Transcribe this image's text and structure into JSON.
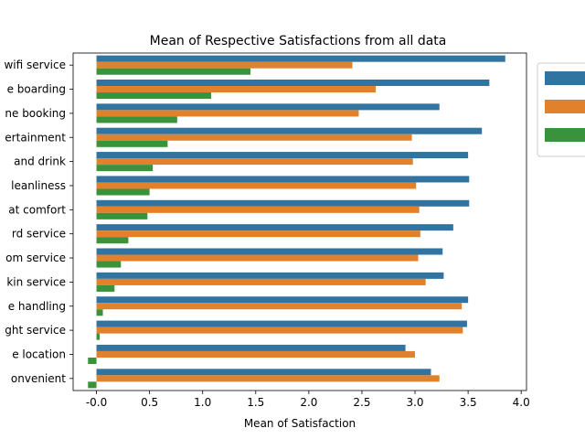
{
  "chart_data": {
    "type": "bar",
    "orientation": "horizontal",
    "title": "Mean of Respective Satisfactions from all data",
    "xlabel": "Mean of Satisfaction",
    "ylabel": "",
    "xlim": [
      -0.22,
      4.05
    ],
    "xticks": [
      -0.0,
      0.5,
      1.0,
      1.5,
      2.0,
      2.5,
      3.0,
      3.5,
      4.0
    ],
    "xtick_labels": [
      "-0.0",
      "0.5",
      "1.0",
      "1.5",
      "2.0",
      "2.5",
      "3.0",
      "3.5",
      "4.0"
    ],
    "categories": [
      "wifi service",
      "e boarding",
      "ne booking",
      "ertainment",
      " and drink",
      "leanliness",
      "at comfort",
      "rd service",
      "om service",
      "kin service",
      "e handling",
      "ght service",
      "e location",
      "onvenient"
    ],
    "series": [
      {
        "name": "",
        "color": "#3274a1",
        "values": [
          3.85,
          3.7,
          3.23,
          3.63,
          3.5,
          3.51,
          3.51,
          3.36,
          3.26,
          3.27,
          3.5,
          3.49,
          2.91,
          3.15
        ]
      },
      {
        "name": "",
        "color": "#e1812c",
        "values": [
          2.41,
          2.63,
          2.47,
          2.97,
          2.98,
          3.01,
          3.04,
          3.05,
          3.03,
          3.1,
          3.44,
          3.45,
          3.0,
          3.23
        ]
      },
      {
        "name": "",
        "color": "#3a923a",
        "values": [
          1.45,
          1.08,
          0.76,
          0.67,
          0.53,
          0.5,
          0.48,
          0.3,
          0.23,
          0.17,
          0.06,
          0.03,
          -0.08,
          -0.08
        ]
      }
    ],
    "legend": {
      "placement": "right-outside-top"
    },
    "grid": false
  }
}
